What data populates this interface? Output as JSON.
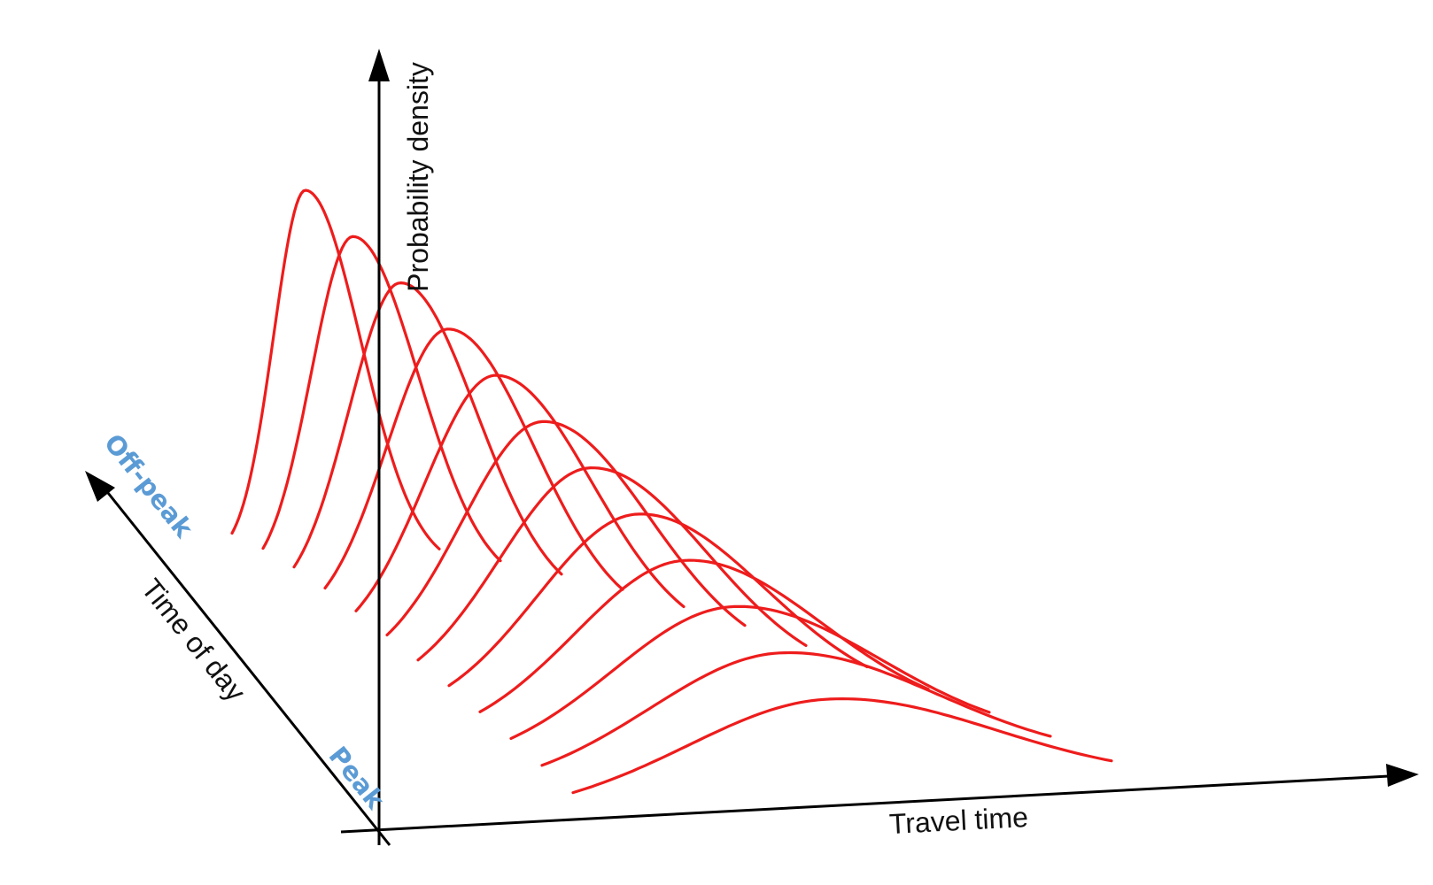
{
  "diagram": {
    "axes": {
      "vertical_label": "Probability density",
      "horizontal_label": "Travel time",
      "depth_label": "Time of day"
    },
    "time_of_day_endpoints": {
      "far": "Off-peak",
      "near": "Peak"
    },
    "curve_count": 12,
    "colors": {
      "curves": "#ee1c1c",
      "axes": "#000000",
      "endpoint_labels": "#5b9bd5"
    }
  }
}
